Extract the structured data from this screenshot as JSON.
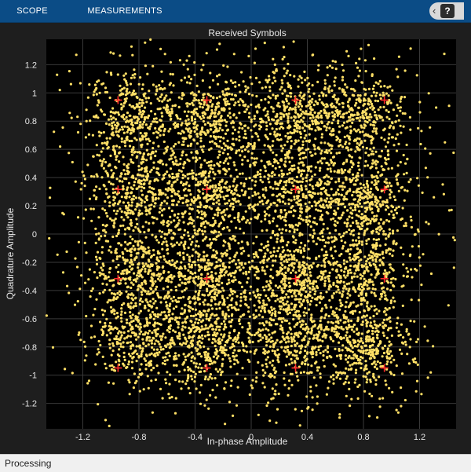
{
  "toolstrip": {
    "tabs": [
      {
        "label": "SCOPE"
      },
      {
        "label": "MEASUREMENTS"
      }
    ],
    "help_label": "?"
  },
  "status": {
    "text": "Processing"
  },
  "chart_data": {
    "type": "scatter",
    "title": "Received Symbols",
    "xlabel": "In-phase Amplitude",
    "ylabel": "Quadrature Amplitude",
    "xlim": [
      -1.46,
      1.46
    ],
    "ylim": [
      -1.38,
      1.38
    ],
    "xticks": [
      "-1.2",
      "-0.8",
      "-0.4",
      "0",
      "0.4",
      "0.8",
      "1.2"
    ],
    "xtick_values": [
      -1.2,
      -0.8,
      -0.4,
      0,
      0.4,
      0.8,
      1.2
    ],
    "yticks": [
      "1.2",
      "1",
      "0.8",
      "0.6",
      "0.4",
      "0.2",
      "0",
      "-0.2",
      "-0.4",
      "-0.6",
      "-0.8",
      "-1",
      "-1.2"
    ],
    "ytick_values": [
      1.2,
      1.0,
      0.8,
      0.6,
      0.4,
      0.2,
      0,
      -0.2,
      -0.4,
      -0.6,
      -0.8,
      -1.0,
      -1.2
    ],
    "grid": true,
    "colors": {
      "received": "#ffe066",
      "reference": "#ff2a2a",
      "axes_bg": "#000000",
      "grid": "#3a3a3a",
      "text": "#e8e8e8"
    },
    "reference_levels": [
      -0.949,
      -0.316,
      0.316,
      0.949
    ],
    "cluster_centers": [
      [
        -0.83,
        0.82
      ],
      [
        -0.3,
        0.82
      ],
      [
        0.3,
        0.82
      ],
      [
        0.8,
        0.82
      ],
      [
        -0.8,
        0.3
      ],
      [
        -0.3,
        0.3
      ],
      [
        0.3,
        0.3
      ],
      [
        0.8,
        0.25
      ],
      [
        -0.8,
        -0.25
      ],
      [
        -0.3,
        -0.3
      ],
      [
        0.3,
        -0.3
      ],
      [
        0.8,
        -0.28
      ],
      [
        -0.8,
        -0.75
      ],
      [
        -0.3,
        -0.75
      ],
      [
        0.3,
        -0.75
      ],
      [
        0.8,
        -0.8
      ]
    ],
    "cluster_spread": 0.16,
    "points_per_cluster": 420
  }
}
